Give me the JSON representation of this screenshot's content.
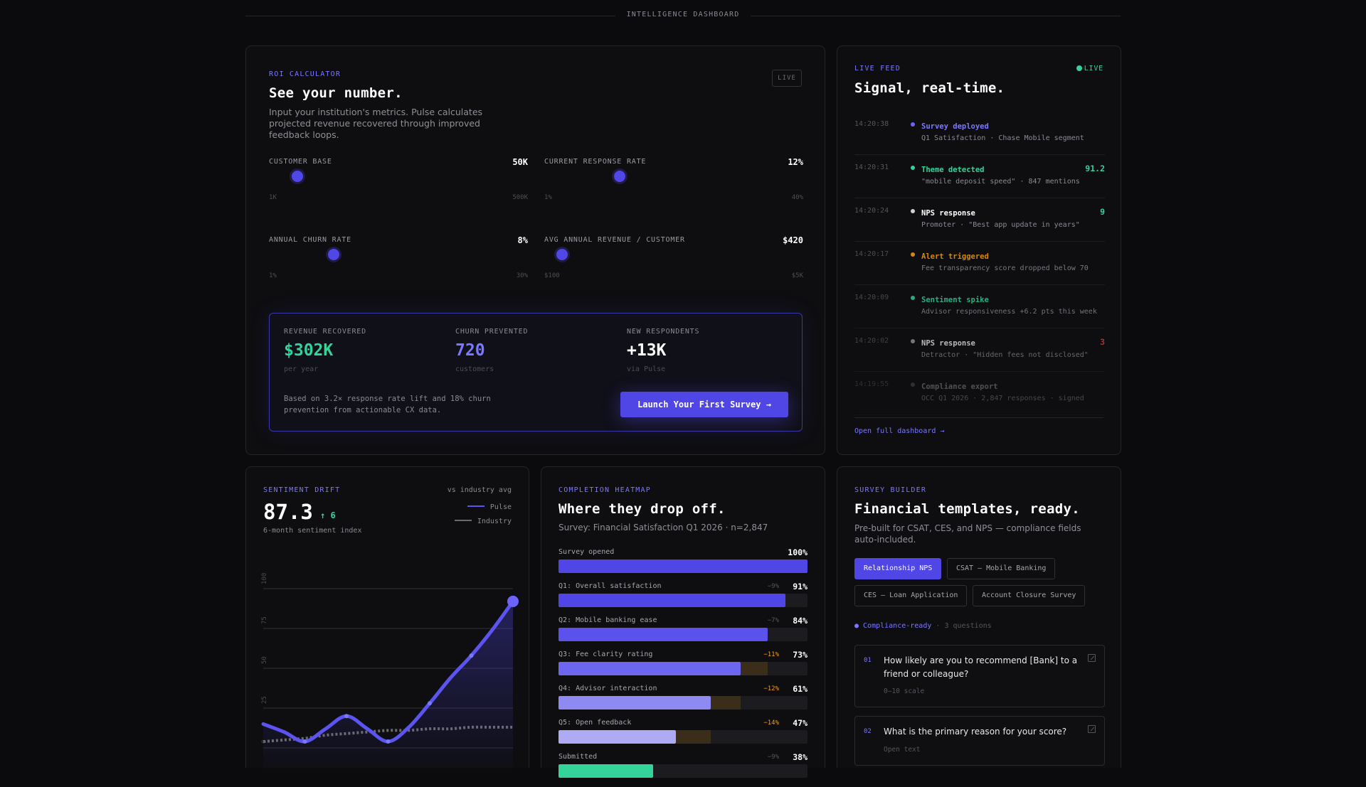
{
  "header": {
    "title": "INTELLIGENCE DASHBOARD"
  },
  "roi": {
    "eyebrow": "ROI CALCULATOR",
    "title": "See your number.",
    "description": "Input your institution's metrics. Pulse calculates projected revenue recovered through improved feedback loops.",
    "live_chip": "LIVE",
    "sliders": [
      {
        "label": "CUSTOMER BASE",
        "value": "50K",
        "min": "1K",
        "max": "500K",
        "position": 0.11
      },
      {
        "label": "CURRENT RESPONSE RATE",
        "value": "12%",
        "min": "1%",
        "max": "40%",
        "position": 0.29
      },
      {
        "label": "ANNUAL CHURN RATE",
        "value": "8%",
        "min": "1%",
        "max": "30%",
        "position": 0.25
      },
      {
        "label": "AVG ANNUAL REVENUE / CUSTOMER",
        "value": "$420",
        "min": "$100",
        "max": "$5K",
        "position": 0.07
      }
    ],
    "results": {
      "stats": [
        {
          "label": "REVENUE RECOVERED",
          "value": "$302K",
          "sub": "per year",
          "color": "#34d399"
        },
        {
          "label": "CHURN PREVENTED",
          "value": "720",
          "sub": "customers",
          "color": "#7b78ff"
        },
        {
          "label": "NEW RESPONDENTS",
          "value": "+13K",
          "sub": "via Pulse",
          "color": "#ffffff"
        }
      ],
      "note": "Based on 3.2× response rate lift and 18% churn prevention from actionable CX data.",
      "cta": "Launch Your First Survey →"
    }
  },
  "feed": {
    "eyebrow": "LIVE FEED",
    "live": "LIVE",
    "title": "Signal, real-time.",
    "items": [
      {
        "time": "14:20:38",
        "title": "Survey deployed",
        "sub": "Q1 Satisfaction · Chase Mobile segment",
        "num": "",
        "color": "#7b78ff",
        "dot": "#6c63ff",
        "opacity": 1
      },
      {
        "time": "14:20:31",
        "title": "Theme detected",
        "sub": "\"mobile deposit speed\" · 847 mentions",
        "num": "91.2",
        "color": "#34d399",
        "dot": "#34d399",
        "num_color": "#34d399",
        "opacity": 1
      },
      {
        "time": "14:20:24",
        "title": "NPS response",
        "sub": "Promoter · \"Best app update in years\"",
        "num": "9",
        "color": "#ffffff",
        "dot": "#d0d0d6",
        "num_color": "#34d399",
        "opacity": 1
      },
      {
        "time": "14:20:17",
        "title": "Alert triggered",
        "sub": "Fee transparency score dropped below 70",
        "num": "",
        "color": "#f59e0b",
        "dot": "#f59e0b",
        "opacity": 0.85
      },
      {
        "time": "14:20:09",
        "title": "Sentiment spike",
        "sub": "Advisor responsiveness +6.2 pts this week",
        "num": "",
        "color": "#34d399",
        "dot": "#34d399",
        "opacity": 0.8
      },
      {
        "time": "14:20:02",
        "title": "NPS response",
        "sub": "Detractor · \"Hidden fees not disclosed\"",
        "num": "3",
        "color": "#ffffff",
        "dot": "#a0a0a8",
        "num_color": "#ef4444",
        "opacity": 0.7
      },
      {
        "time": "14:19:55",
        "title": "Compliance export",
        "sub": "OCC Q1 2026 · 2,847 responses · signed",
        "num": "",
        "color": "#a0a0a8",
        "dot": "#55555d",
        "opacity": 0.45
      }
    ],
    "open_link": "Open full dashboard →"
  },
  "sentiment": {
    "eyebrow": "SENTIMENT DRIFT",
    "vs": "vs industry avg",
    "value": "87.3",
    "delta": "↑ 6",
    "caption": "6-month sentiment index",
    "legend_pulse": "Pulse",
    "legend_industry": "Industry",
    "pulse_color": "#5b54f0",
    "industry_color": "#6a6a72"
  },
  "chart_data": {
    "type": "line",
    "title": "",
    "xlabel": "",
    "ylabel": "",
    "y_ticks": [
      "100",
      "75",
      "50",
      "25",
      "0"
    ],
    "ylim": [
      0,
      100
    ],
    "grid": true,
    "x": [
      0,
      1,
      2,
      3,
      4,
      5,
      6,
      7,
      8,
      9,
      10,
      11,
      12
    ],
    "series": [
      {
        "name": "Pulse",
        "values": [
          15,
          10,
          4,
          12,
          20,
          12,
          4,
          13,
          28,
          44,
          58,
          74,
          92
        ]
      },
      {
        "name": "Industry",
        "values": [
          4,
          5,
          6,
          8,
          9,
          10,
          11,
          11,
          12,
          12,
          13,
          13,
          13
        ]
      }
    ]
  },
  "heatmap": {
    "eyebrow": "COMPLETION HEATMAP",
    "title": "Where they drop off.",
    "survey": "Survey: Financial Satisfaction Q1 2026 · n=2,847",
    "rows": [
      {
        "label": "Survey opened",
        "drop": "",
        "pct": "100%",
        "value": 100,
        "prev": 100,
        "color": "#4f46e5",
        "drop_color": "#55555d"
      },
      {
        "label": "Q1: Overall satisfaction",
        "drop": "−9%",
        "pct": "91%",
        "value": 91,
        "prev": 91,
        "color": "#4f46e5",
        "drop_color": "#55555d"
      },
      {
        "label": "Q2: Mobile banking ease",
        "drop": "−7%",
        "pct": "84%",
        "value": 84,
        "prev": 84,
        "color": "#5a52ea",
        "drop_color": "#55555d"
      },
      {
        "label": "Q3: Fee clarity rating",
        "drop": "−11%",
        "pct": "73%",
        "value": 73,
        "prev": 84,
        "color": "#6d66ee",
        "drop_color": "#f59e0b"
      },
      {
        "label": "Q4: Advisor interaction",
        "drop": "−12%",
        "pct": "61%",
        "value": 61,
        "prev": 73,
        "color": "#8f89f2",
        "drop_color": "#f59e0b"
      },
      {
        "label": "Q5: Open feedback",
        "drop": "−14%",
        "pct": "47%",
        "value": 47,
        "prev": 61,
        "color": "#aeaaf4",
        "drop_color": "#f59e0b"
      },
      {
        "label": "Submitted",
        "drop": "−9%",
        "pct": "38%",
        "value": 38,
        "prev": 38,
        "color": "#34d399",
        "drop_color": "#55555d"
      }
    ]
  },
  "builder": {
    "eyebrow": "SURVEY BUILDER",
    "title": "Financial templates, ready.",
    "description": "Pre-built for CSAT, CES, and NPS — compliance fields auto-included.",
    "templates": [
      "Relationship NPS",
      "CSAT — Mobile Banking",
      "CES — Loan Application",
      "Account Closure Survey"
    ],
    "compliance": "● Compliance-ready",
    "questions_count": "· 3 questions",
    "questions": [
      {
        "num": "01",
        "text": "How likely are you to recommend [Bank] to a friend or colleague?",
        "kind": "0–10 scale"
      },
      {
        "num": "02",
        "text": "What is the primary reason for your score?",
        "kind": "Open text"
      }
    ]
  }
}
